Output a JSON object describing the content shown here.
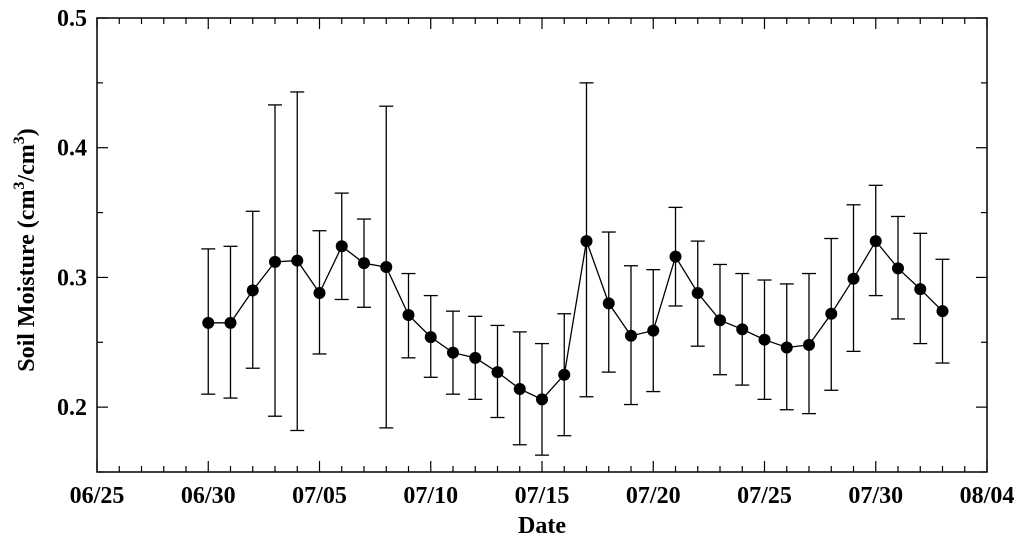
{
  "chart_data": {
    "type": "scatter",
    "title": "",
    "xlabel": "Date",
    "ylabel_parts": [
      "Soil Moisture (cm",
      "3",
      "/cm",
      "3",
      ")"
    ],
    "x_axis": {
      "type": "date",
      "min": "06/25",
      "max": "08/04",
      "tick_labels": [
        "06/25",
        "06/30",
        "07/05",
        "07/10",
        "07/15",
        "07/20",
        "07/25",
        "07/30",
        "08/04"
      ],
      "minor_tick_step_days": 1
    },
    "y_axis": {
      "min": 0.15,
      "max": 0.5,
      "tick_values": [
        0.2,
        0.3,
        0.4,
        0.5
      ],
      "tick_labels": [
        "0.2",
        "0.3",
        "0.4",
        "0.5"
      ],
      "minor_tick_step": 0.05
    },
    "grid": false,
    "legend": "none",
    "connect_points": true,
    "colors": {
      "line": "#000000",
      "marker": "#000000"
    },
    "points": [
      {
        "x": "06/30",
        "y": 0.265,
        "low": 0.21,
        "high": 0.322
      },
      {
        "x": "07/01",
        "y": 0.265,
        "low": 0.207,
        "high": 0.324
      },
      {
        "x": "07/02",
        "y": 0.29,
        "low": 0.23,
        "high": 0.351
      },
      {
        "x": "07/03",
        "y": 0.312,
        "low": 0.193,
        "high": 0.433
      },
      {
        "x": "07/04",
        "y": 0.313,
        "low": 0.182,
        "high": 0.443
      },
      {
        "x": "07/05",
        "y": 0.288,
        "low": 0.241,
        "high": 0.336
      },
      {
        "x": "07/06",
        "y": 0.324,
        "low": 0.283,
        "high": 0.365
      },
      {
        "x": "07/07",
        "y": 0.311,
        "low": 0.277,
        "high": 0.345
      },
      {
        "x": "07/08",
        "y": 0.308,
        "low": 0.184,
        "high": 0.432
      },
      {
        "x": "07/09",
        "y": 0.271,
        "low": 0.238,
        "high": 0.303
      },
      {
        "x": "07/10",
        "y": 0.254,
        "low": 0.223,
        "high": 0.286
      },
      {
        "x": "07/11",
        "y": 0.242,
        "low": 0.21,
        "high": 0.274
      },
      {
        "x": "07/12",
        "y": 0.238,
        "low": 0.206,
        "high": 0.27
      },
      {
        "x": "07/13",
        "y": 0.227,
        "low": 0.192,
        "high": 0.263
      },
      {
        "x": "07/14",
        "y": 0.214,
        "low": 0.171,
        "high": 0.258
      },
      {
        "x": "07/15",
        "y": 0.206,
        "low": 0.163,
        "high": 0.249
      },
      {
        "x": "07/16",
        "y": 0.225,
        "low": 0.178,
        "high": 0.272
      },
      {
        "x": "07/17",
        "y": 0.328,
        "low": 0.208,
        "high": 0.45
      },
      {
        "x": "07/18",
        "y": 0.28,
        "low": 0.227,
        "high": 0.335
      },
      {
        "x": "07/19",
        "y": 0.255,
        "low": 0.202,
        "high": 0.309
      },
      {
        "x": "07/20",
        "y": 0.259,
        "low": 0.212,
        "high": 0.306
      },
      {
        "x": "07/21",
        "y": 0.316,
        "low": 0.278,
        "high": 0.354
      },
      {
        "x": "07/22",
        "y": 0.288,
        "low": 0.247,
        "high": 0.328
      },
      {
        "x": "07/23",
        "y": 0.267,
        "low": 0.225,
        "high": 0.31
      },
      {
        "x": "07/24",
        "y": 0.26,
        "low": 0.217,
        "high": 0.303
      },
      {
        "x": "07/25",
        "y": 0.252,
        "low": 0.206,
        "high": 0.298
      },
      {
        "x": "07/26",
        "y": 0.246,
        "low": 0.198,
        "high": 0.295
      },
      {
        "x": "07/27",
        "y": 0.248,
        "low": 0.195,
        "high": 0.303
      },
      {
        "x": "07/28",
        "y": 0.272,
        "low": 0.213,
        "high": 0.33
      },
      {
        "x": "07/29",
        "y": 0.299,
        "low": 0.243,
        "high": 0.356
      },
      {
        "x": "07/30",
        "y": 0.328,
        "low": 0.286,
        "high": 0.371
      },
      {
        "x": "07/31",
        "y": 0.307,
        "low": 0.268,
        "high": 0.347
      },
      {
        "x": "08/01",
        "y": 0.291,
        "low": 0.249,
        "high": 0.334
      },
      {
        "x": "08/02",
        "y": 0.274,
        "low": 0.234,
        "high": 0.314
      }
    ]
  }
}
